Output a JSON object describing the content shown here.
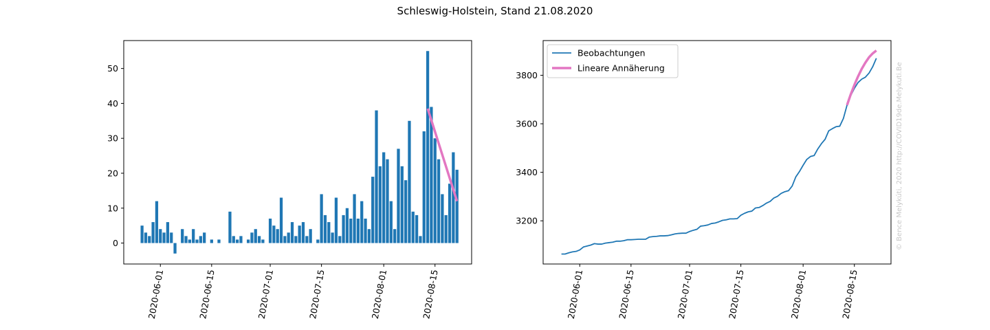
{
  "figure": {
    "title": "Schleswig-Holstein, Stand 21.08.2020",
    "watermark": "© Bence Melykúti, 2020  http://COVID19de.Melykuti.Be"
  },
  "colors": {
    "observations": "#1f77b4",
    "fit": "#e377c2",
    "axis": "#000000",
    "watermark": "#c8c8c8"
  },
  "chart_data": [
    {
      "type": "bar",
      "x": [
        "2020-05-27",
        "2020-05-28",
        "2020-05-29",
        "2020-05-30",
        "2020-05-31",
        "2020-06-01",
        "2020-06-02",
        "2020-06-03",
        "2020-06-04",
        "2020-06-05",
        "2020-06-06",
        "2020-06-07",
        "2020-06-08",
        "2020-06-09",
        "2020-06-10",
        "2020-06-11",
        "2020-06-12",
        "2020-06-13",
        "2020-06-14",
        "2020-06-15",
        "2020-06-16",
        "2020-06-17",
        "2020-06-18",
        "2020-06-19",
        "2020-06-20",
        "2020-06-21",
        "2020-06-22",
        "2020-06-23",
        "2020-06-24",
        "2020-06-25",
        "2020-06-26",
        "2020-06-27",
        "2020-06-28",
        "2020-06-29",
        "2020-06-30",
        "2020-07-01",
        "2020-07-02",
        "2020-07-03",
        "2020-07-04",
        "2020-07-05",
        "2020-07-06",
        "2020-07-07",
        "2020-07-08",
        "2020-07-09",
        "2020-07-10",
        "2020-07-11",
        "2020-07-12",
        "2020-07-13",
        "2020-07-14",
        "2020-07-15",
        "2020-07-16",
        "2020-07-17",
        "2020-07-18",
        "2020-07-19",
        "2020-07-20",
        "2020-07-21",
        "2020-07-22",
        "2020-07-23",
        "2020-07-24",
        "2020-07-25",
        "2020-07-26",
        "2020-07-27",
        "2020-07-28",
        "2020-07-29",
        "2020-07-30",
        "2020-07-31",
        "2020-08-01",
        "2020-08-02",
        "2020-08-03",
        "2020-08-04",
        "2020-08-05",
        "2020-08-06",
        "2020-08-07",
        "2020-08-08",
        "2020-08-09",
        "2020-08-10",
        "2020-08-11",
        "2020-08-12",
        "2020-08-13",
        "2020-08-14",
        "2020-08-15",
        "2020-08-16",
        "2020-08-17",
        "2020-08-18",
        "2020-08-19",
        "2020-08-20",
        "2020-08-21"
      ],
      "values": [
        5,
        3,
        2,
        6,
        12,
        4,
        3,
        6,
        3,
        -3,
        0,
        4,
        2,
        1,
        4,
        1,
        2,
        3,
        0,
        1,
        0,
        1,
        0,
        0,
        9,
        2,
        1,
        2,
        0,
        1,
        3,
        4,
        2,
        1,
        0,
        7,
        5,
        4,
        13,
        2,
        3,
        6,
        2,
        5,
        6,
        2,
        4,
        0,
        1,
        14,
        8,
        6,
        3,
        13,
        2,
        8,
        10,
        7,
        14,
        7,
        12,
        7,
        4,
        19,
        38,
        22,
        26,
        24,
        12,
        4,
        27,
        22,
        18,
        35,
        9,
        8,
        2,
        32,
        55,
        39,
        30,
        24,
        14,
        8,
        17,
        26,
        21
      ],
      "fit_line": {
        "name": "Lineare Annäherung",
        "x": [
          "2020-08-13",
          "2020-08-21"
        ],
        "y": [
          38.5,
          12
        ]
      },
      "yticks": [
        0,
        10,
        20,
        30,
        40,
        50
      ],
      "xticks": [
        "2020-06-01",
        "2020-06-15",
        "2020-07-01",
        "2020-07-15",
        "2020-08-01",
        "2020-08-15"
      ],
      "ylim": [
        -6,
        58
      ],
      "xlim": [
        "2020-05-22",
        "2020-08-25"
      ]
    },
    {
      "type": "line",
      "series": [
        {
          "name": "Beobachtungen",
          "x": [
            "2020-05-27",
            "2020-05-28",
            "2020-05-29",
            "2020-05-30",
            "2020-05-31",
            "2020-06-01",
            "2020-06-02",
            "2020-06-03",
            "2020-06-04",
            "2020-06-05",
            "2020-06-06",
            "2020-06-07",
            "2020-06-08",
            "2020-06-09",
            "2020-06-10",
            "2020-06-11",
            "2020-06-12",
            "2020-06-13",
            "2020-06-14",
            "2020-06-15",
            "2020-06-16",
            "2020-06-17",
            "2020-06-18",
            "2020-06-19",
            "2020-06-20",
            "2020-06-21",
            "2020-06-22",
            "2020-06-23",
            "2020-06-24",
            "2020-06-25",
            "2020-06-26",
            "2020-06-27",
            "2020-06-28",
            "2020-06-29",
            "2020-06-30",
            "2020-07-01",
            "2020-07-02",
            "2020-07-03",
            "2020-07-04",
            "2020-07-05",
            "2020-07-06",
            "2020-07-07",
            "2020-07-08",
            "2020-07-09",
            "2020-07-10",
            "2020-07-11",
            "2020-07-12",
            "2020-07-13",
            "2020-07-14",
            "2020-07-15",
            "2020-07-16",
            "2020-07-17",
            "2020-07-18",
            "2020-07-19",
            "2020-07-20",
            "2020-07-21",
            "2020-07-22",
            "2020-07-23",
            "2020-07-24",
            "2020-07-25",
            "2020-07-26",
            "2020-07-27",
            "2020-07-28",
            "2020-07-29",
            "2020-07-30",
            "2020-07-31",
            "2020-08-01",
            "2020-08-02",
            "2020-08-03",
            "2020-08-04",
            "2020-08-05",
            "2020-08-06",
            "2020-08-07",
            "2020-08-08",
            "2020-08-09",
            "2020-08-10",
            "2020-08-11",
            "2020-08-12",
            "2020-08-13",
            "2020-08-14",
            "2020-08-15",
            "2020-08-16",
            "2020-08-17",
            "2020-08-18",
            "2020-08-19",
            "2020-08-20",
            "2020-08-21"
          ],
          "values": [
            3063,
            3063,
            3068,
            3072,
            3074,
            3080,
            3092,
            3096,
            3100,
            3106,
            3104,
            3104,
            3108,
            3110,
            3112,
            3116,
            3116,
            3118,
            3122,
            3122,
            3123,
            3124,
            3124,
            3124,
            3133,
            3135,
            3136,
            3138,
            3138,
            3139,
            3142,
            3146,
            3148,
            3149,
            3149,
            3156,
            3161,
            3165,
            3178,
            3180,
            3183,
            3189,
            3191,
            3196,
            3202,
            3204,
            3208,
            3208,
            3209,
            3223,
            3231,
            3237,
            3240,
            3253,
            3255,
            3263,
            3273,
            3280,
            3294,
            3301,
            3313,
            3320,
            3324,
            3343,
            3381,
            3403,
            3429,
            3453,
            3465,
            3469,
            3496,
            3518,
            3536,
            3571,
            3580,
            3588,
            3590,
            3622,
            3677,
            3716,
            3746,
            3770,
            3784,
            3792,
            3809,
            3835,
            3870
          ]
        },
        {
          "name": "Lineare Annäherung",
          "x": [
            "2020-08-13",
            "2020-08-14",
            "2020-08-15",
            "2020-08-16",
            "2020-08-17",
            "2020-08-18",
            "2020-08-19",
            "2020-08-20",
            "2020-08-21"
          ],
          "values": [
            3677,
            3721,
            3760,
            3795,
            3826,
            3852,
            3874,
            3890,
            3902
          ]
        }
      ],
      "yticks": [
        3200,
        3400,
        3600,
        3800
      ],
      "xticks": [
        "2020-06-01",
        "2020-06-15",
        "2020-07-01",
        "2020-07-15",
        "2020-08-01",
        "2020-08-15"
      ],
      "ylim": [
        3022,
        3943
      ],
      "xlim": [
        "2020-05-22",
        "2020-08-25"
      ],
      "legend": "upper-left"
    }
  ]
}
